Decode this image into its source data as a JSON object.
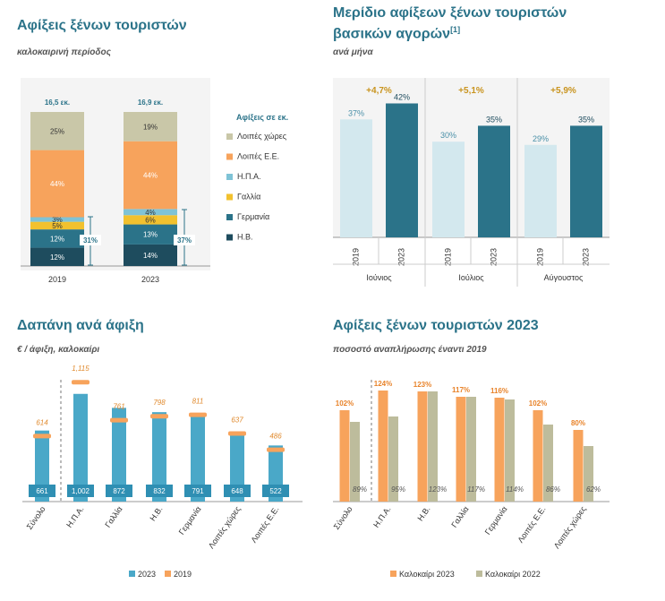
{
  "panels": {
    "p1": {
      "title": "Αφίξεις ξένων τουριστών",
      "subtitle": "καλοκαιρινή περίοδος"
    },
    "p2": {
      "title_line1": "Μερίδιο αφίξεων ξένων τουριστών",
      "title_line2": "βασικών αγορών",
      "title_sup": "[1]",
      "subtitle": "ανά μήνα"
    },
    "p3": {
      "title": "Δαπάνη ανά άφιξη",
      "subtitle": "€ / άφιξη, καλοκαίρι"
    },
    "p4": {
      "title": "Αφίξεις ξένων τουριστών 2023",
      "subtitle": "ποσοστό αναπλήρωσης έναντι 2019"
    }
  },
  "chart_data": [
    {
      "id": "arrivals_stacked",
      "type": "bar",
      "stacked": true,
      "categories": [
        "2019",
        "2023"
      ],
      "totals": [
        "16,5 εκ.",
        "16,9 εκ."
      ],
      "legend_title": "Αφίξεις σε εκ.",
      "series": [
        {
          "name": "Η.Β.",
          "values": [
            12,
            14
          ],
          "labels": [
            "12%",
            "14%"
          ],
          "color": "#1e4c5e"
        },
        {
          "name": "Γερμανία",
          "values": [
            12,
            13
          ],
          "labels": [
            "12%",
            "13%"
          ],
          "color": "#2b7389"
        },
        {
          "name": "Γαλλία",
          "values": [
            5,
            6
          ],
          "labels": [
            "5%",
            "6%"
          ],
          "color": "#f2c12e"
        },
        {
          "name": "Η.Π.Α.",
          "values": [
            3,
            4
          ],
          "labels": [
            "3%",
            "4%"
          ],
          "color": "#7fc3d6"
        },
        {
          "name": "Λοιπές Ε.Ε.",
          "values": [
            44,
            44
          ],
          "labels": [
            "44%",
            "44%"
          ],
          "color": "#f7a35c"
        },
        {
          "name": "Λοιπές χώρες",
          "values": [
            25,
            19
          ],
          "labels": [
            "25%",
            "19%"
          ],
          "color": "#c9c7a8"
        }
      ],
      "bracket_labels": [
        "31%",
        "37%"
      ],
      "ylim": [
        0,
        100
      ]
    },
    {
      "id": "share_by_month",
      "type": "bar",
      "groups": [
        {
          "month": "Ιούνιος",
          "change": "+4,7%",
          "bars": [
            {
              "year": "2019",
              "value": 37,
              "label": "37%"
            },
            {
              "year": "2023",
              "value": 42,
              "label": "42%"
            }
          ]
        },
        {
          "month": "Ιούλιος",
          "change": "+5,1%",
          "bars": [
            {
              "year": "2019",
              "value": 30,
              "label": "30%"
            },
            {
              "year": "2023",
              "value": 35,
              "label": "35%"
            }
          ]
        },
        {
          "month": "Αύγουστος",
          "change": "+5,9%",
          "bars": [
            {
              "year": "2019",
              "value": 29,
              "label": "29%"
            },
            {
              "year": "2023",
              "value": 35,
              "label": "35%"
            }
          ]
        }
      ],
      "colors": {
        "2019": "#d3e8ee",
        "2023": "#2b7389",
        "change": "#c9941e"
      },
      "ylim": [
        0,
        50
      ]
    },
    {
      "id": "spend_per_arrival",
      "type": "bar",
      "categories": [
        "Σύνολο",
        "Η.Π.Α.",
        "Γαλλία",
        "Η.Β.",
        "Γερμανία",
        "Λοιπές χώρες",
        "Λοιπές Ε.Ε."
      ],
      "series": [
        {
          "name": "2023",
          "values": [
            661,
            1002,
            872,
            832,
            791,
            648,
            522
          ],
          "labels": [
            "661",
            "1,002",
            "872",
            "832",
            "791",
            "648",
            "522"
          ],
          "color": "#4aa8c8"
        },
        {
          "name": "2019",
          "values": [
            614,
            1115,
            761,
            798,
            811,
            637,
            486
          ],
          "labels": [
            "614",
            "1,115",
            "761",
            "798",
            "811",
            "637",
            "486"
          ],
          "color": "#f7a35c"
        }
      ],
      "ylim": [
        0,
        1250
      ]
    },
    {
      "id": "recovery_2023",
      "type": "bar",
      "categories": [
        "Σύνολο",
        "Η.Π.Α.",
        "Η.Β.",
        "Γαλλία",
        "Γερμανία",
        "Λοιπές Ε.Ε.",
        "Λοιπές χώρες"
      ],
      "series": [
        {
          "name": "Καλοκαίρι 2023",
          "values": [
            102,
            124,
            123,
            117,
            116,
            102,
            80
          ],
          "labels": [
            "102%",
            "124%",
            "123%",
            "117%",
            "116%",
            "102%",
            "80%"
          ],
          "color": "#f7a35c"
        },
        {
          "name": "Καλοκαίρι 2022",
          "values": [
            89,
            95,
            123,
            117,
            114,
            86,
            62
          ],
          "labels": [
            "89%",
            "95%",
            "123%",
            "117%",
            "114%",
            "86%",
            "62%"
          ],
          "color": "#bdbc9c"
        }
      ],
      "ylim": [
        0,
        130
      ]
    }
  ]
}
